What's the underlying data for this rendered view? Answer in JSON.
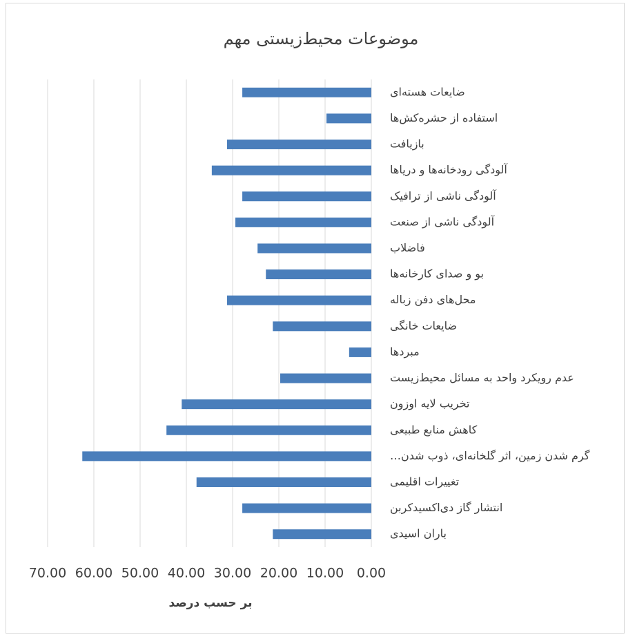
{
  "chart_data": {
    "type": "barh",
    "title": "موضوعات محیط‌زیستی مهم",
    "x_label": "بر حسب درصد",
    "categories": [
      "ضایعات هسته‌ای",
      "استفاده از حشره‌کش‌ها",
      "بازیافت",
      "آلودگی رودخانه‌ها و دریاها",
      "آلودگی ناشی از ترافیک",
      "آلودگی ناشی از صنعت",
      "فاضلاب",
      "بو و صدای کارخانه‌ها",
      "محل‌های دفن زباله",
      "ضایعات خانگی",
      "مبردها",
      "عدم رویکرد واحد به مسائل محیط‌زیست",
      "تخریب لایه اوزون",
      "کاهش منابع طبیعی",
      "گرم شدن زمین، اثر گلخانه‌ای، ذوب شدن…",
      "تغییرات اقلیمی",
      "انتشار گاز دی‌اکسیدکربن",
      "باران اسیدی"
    ],
    "values": [
      27.9,
      9.7,
      31.2,
      34.5,
      27.9,
      29.4,
      24.6,
      22.8,
      31.2,
      21.3,
      4.8,
      19.7,
      41.0,
      44.3,
      62.5,
      37.8,
      27.9,
      21.3
    ],
    "color": "#4a7ebb",
    "xlim": [
      0,
      70
    ],
    "x_reversed": true,
    "xticks": [
      {
        "value": 0,
        "label": "0.00"
      },
      {
        "value": 10,
        "label": "10.00"
      },
      {
        "value": 20,
        "label": "20.00"
      },
      {
        "value": 30,
        "label": "30.00"
      },
      {
        "value": 40,
        "label": "40.00"
      },
      {
        "value": 50,
        "label": "50.00"
      },
      {
        "value": 60,
        "label": "60.00"
      },
      {
        "value": 70,
        "label": "70.00"
      }
    ],
    "grid": true
  }
}
